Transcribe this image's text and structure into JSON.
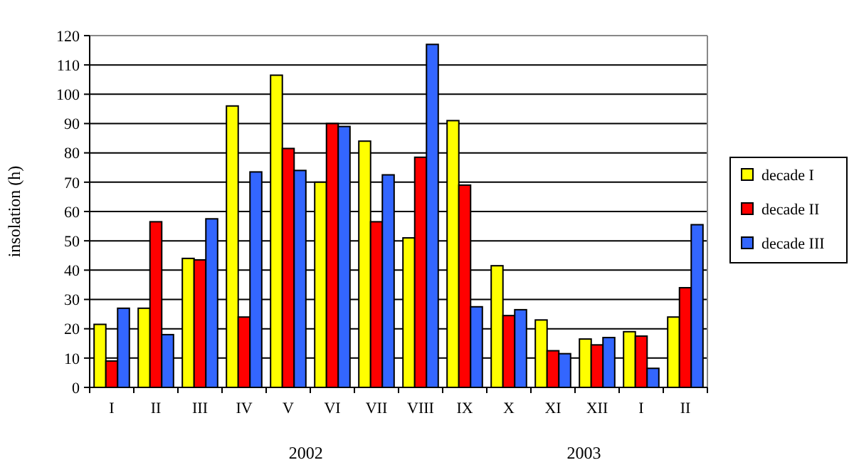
{
  "chart_data": {
    "type": "bar",
    "ylabel": "insolation (h)",
    "categories": [
      "I",
      "II",
      "III",
      "IV",
      "V",
      "VI",
      "VII",
      "VIII",
      "IX",
      "X",
      "XI",
      "XII",
      "I",
      "II"
    ],
    "series": [
      {
        "name": "decade I",
        "color": "#ffff00",
        "values": [
          21.5,
          27,
          44,
          96,
          106.5,
          70,
          84,
          51,
          91,
          41.5,
          23,
          16.5,
          19,
          24
        ]
      },
      {
        "name": "decade II",
        "color": "#ff0000",
        "values": [
          9,
          56.5,
          43.5,
          24,
          81.5,
          90,
          56.5,
          78.5,
          69,
          24.5,
          12.5,
          14.5,
          17.5,
          34
        ]
      },
      {
        "name": "decade III",
        "color": "#3366ff",
        "values": [
          27,
          18,
          57.5,
          73.5,
          74,
          89,
          72.5,
          117,
          27.5,
          26.5,
          11.5,
          17,
          6.5,
          55.5
        ]
      }
    ],
    "ylim": [
      0,
      120
    ],
    "yticks": [
      0,
      10,
      20,
      30,
      40,
      50,
      60,
      70,
      80,
      90,
      100,
      110,
      120
    ],
    "grid": "y",
    "legend": "right",
    "annotations": [
      "2002",
      "2003"
    ]
  }
}
